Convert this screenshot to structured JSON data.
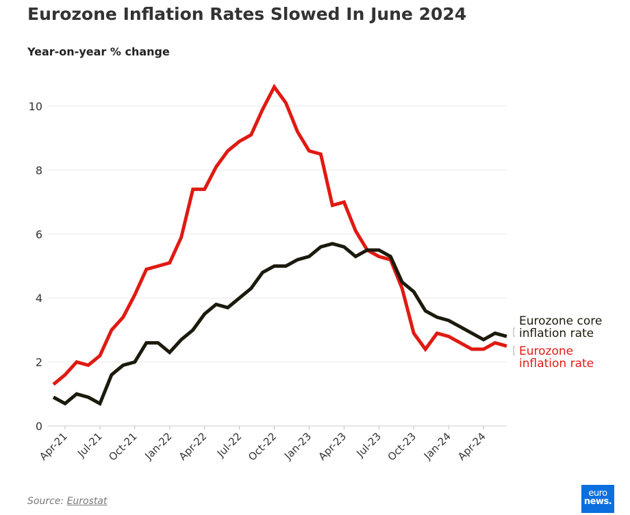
{
  "title": "Eurozone Inflation Rates Slowed In June 2024",
  "subtitle": "Year-on-year % change",
  "source": {
    "prefix": "Source: ",
    "link": "Eurostat"
  },
  "logo": {
    "line1": "euro",
    "line2": "news."
  },
  "chart_data": {
    "type": "line",
    "x": [
      "Mar-21",
      "Apr-21",
      "May-21",
      "Jun-21",
      "Jul-21",
      "Aug-21",
      "Sep-21",
      "Oct-21",
      "Nov-21",
      "Dec-21",
      "Jan-22",
      "Feb-22",
      "Mar-22",
      "Apr-22",
      "May-22",
      "Jun-22",
      "Jul-22",
      "Aug-22",
      "Sep-22",
      "Oct-22",
      "Nov-22",
      "Dec-22",
      "Jan-23",
      "Feb-23",
      "Mar-23",
      "Apr-23",
      "May-23",
      "Jun-23",
      "Jul-23",
      "Aug-23",
      "Sep-23",
      "Oct-23",
      "Nov-23",
      "Dec-23",
      "Jan-24",
      "Feb-24",
      "Mar-24",
      "Apr-24",
      "May-24",
      "Jun-24"
    ],
    "x_tick_labels": [
      "Apr-21",
      "Jul-21",
      "Oct-21",
      "Jan-22",
      "Apr-22",
      "Jul-22",
      "Oct-22",
      "Jan-23",
      "Apr-23",
      "Jul-23",
      "Oct-23",
      "Jan-24",
      "Apr-24"
    ],
    "y_ticks": [
      0,
      2,
      4,
      6,
      8,
      10
    ],
    "ylim": [
      0,
      11
    ],
    "grid": "horizontal",
    "series": [
      {
        "name": "Eurozone inflation rate",
        "color": "#e01a12",
        "values": [
          1.3,
          1.6,
          2.0,
          1.9,
          2.2,
          3.0,
          3.4,
          4.1,
          4.9,
          5.0,
          5.1,
          5.9,
          7.4,
          7.4,
          8.1,
          8.6,
          8.9,
          9.1,
          9.9,
          10.6,
          10.1,
          9.2,
          8.6,
          8.5,
          6.9,
          7.0,
          6.1,
          5.5,
          5.3,
          5.2,
          4.3,
          2.9,
          2.4,
          2.9,
          2.8,
          2.6,
          2.4,
          2.4,
          2.6,
          2.5
        ]
      },
      {
        "name": "Eurozone core inflation rate",
        "color": "#1c1a0c",
        "values": [
          0.9,
          0.7,
          1.0,
          0.9,
          0.7,
          1.6,
          1.9,
          2.0,
          2.6,
          2.6,
          2.3,
          2.7,
          3.0,
          3.5,
          3.8,
          3.7,
          4.0,
          4.3,
          4.8,
          5.0,
          5.0,
          5.2,
          5.3,
          5.6,
          5.7,
          5.6,
          5.3,
          5.5,
          5.5,
          5.3,
          4.5,
          4.2,
          3.6,
          3.4,
          3.3,
          3.1,
          2.9,
          2.7,
          2.9,
          2.8
        ]
      }
    ],
    "legend_labels": {
      "core": [
        "Eurozone core",
        "inflation rate"
      ],
      "headline": [
        "Eurozone",
        "inflation rate"
      ]
    },
    "legend_placement": "right, at line ends"
  }
}
